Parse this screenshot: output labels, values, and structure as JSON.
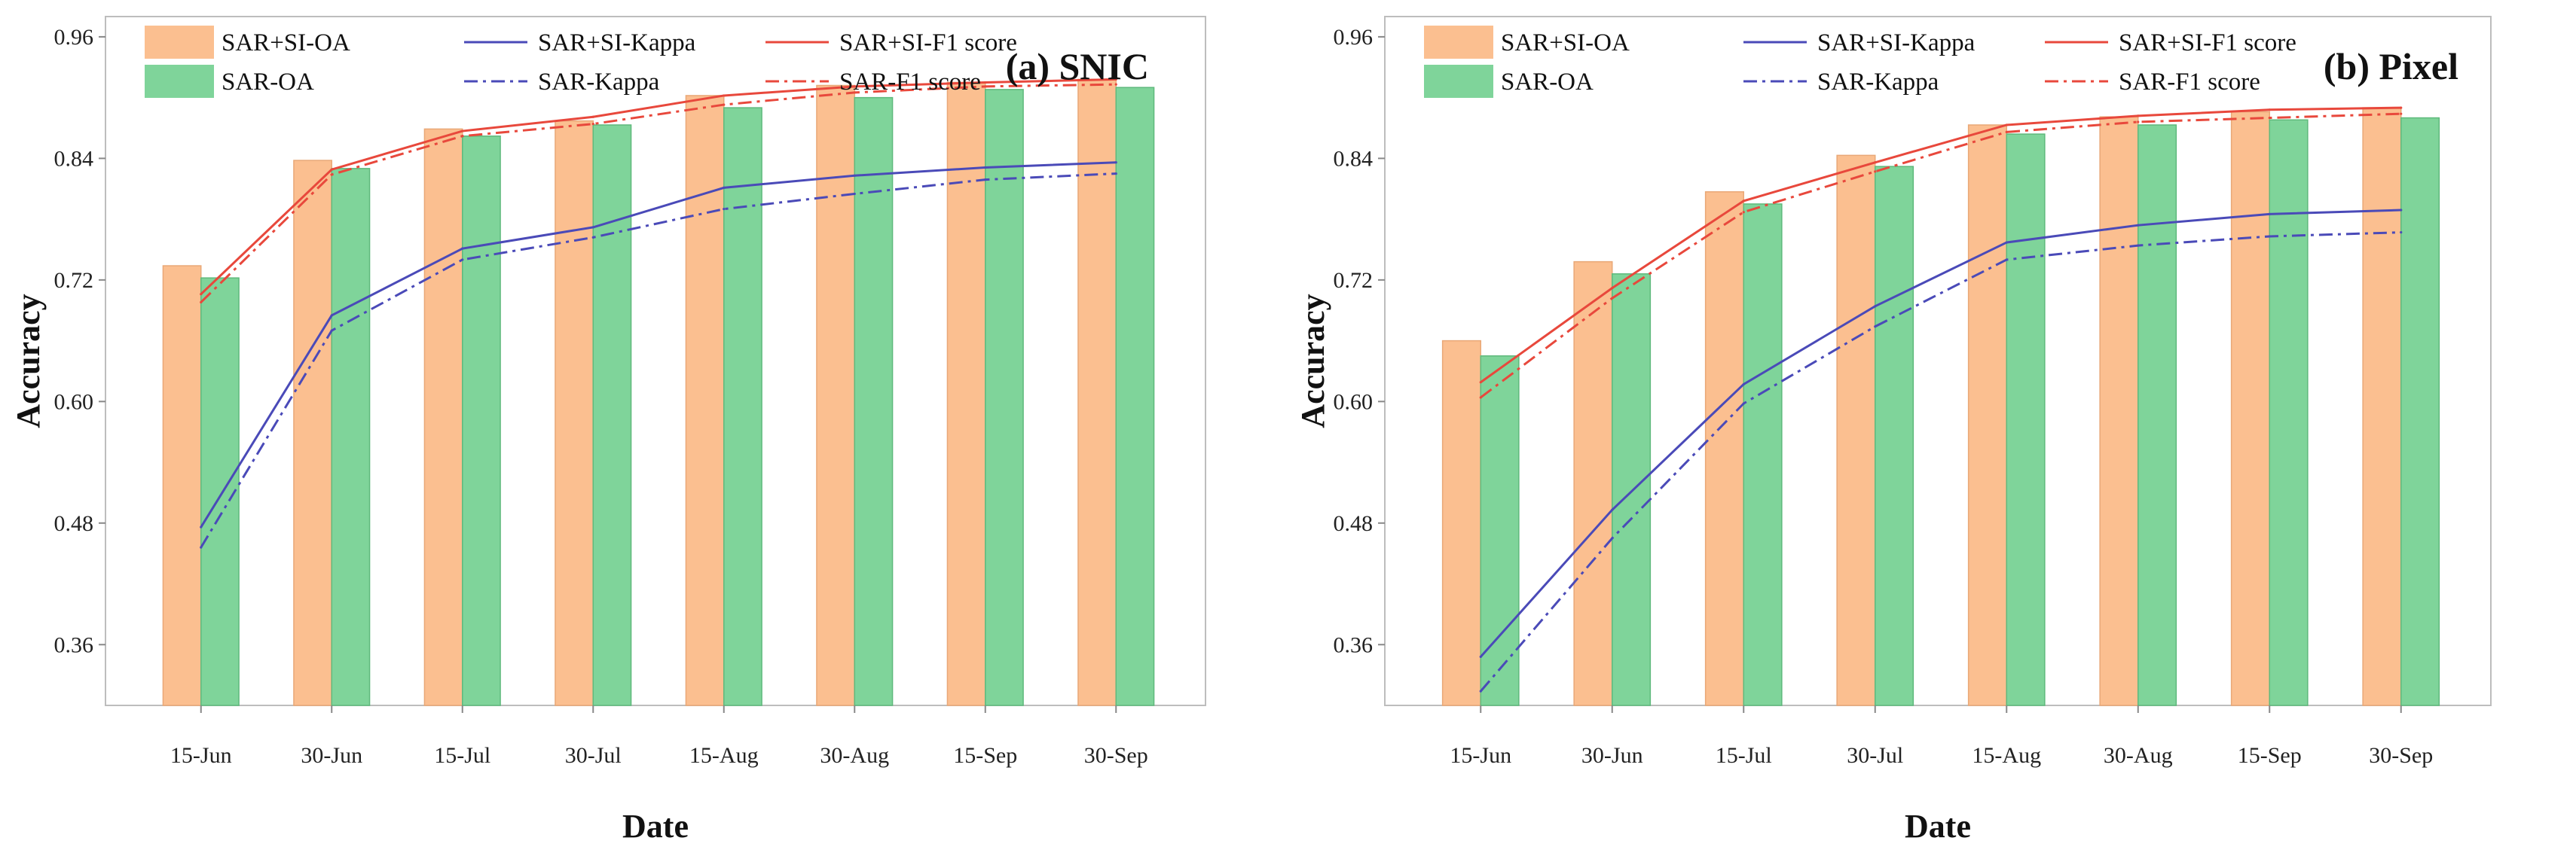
{
  "colors": {
    "sar_si_oa": "#fbbf90",
    "sar_oa": "#7fd49a",
    "sar_si_kappa": "#4a4ab8",
    "sar_kappa": "#4a4ab8",
    "sar_si_f1": "#e8483c",
    "sar_f1": "#e8483c"
  },
  "chart_data": [
    {
      "type": "bar",
      "title": "(a) SNIC",
      "xlabel": "Date",
      "ylabel": "Accuracy",
      "ylim": [
        0.3,
        0.98
      ],
      "yticks": [
        "0.36",
        "0.48",
        "0.60",
        "0.72",
        "0.84",
        "0.96"
      ],
      "categories": [
        "15-Jun",
        "30-Jun",
        "15-Jul",
        "30-Jul",
        "15-Aug",
        "30-Aug",
        "15-Sep",
        "30-Sep"
      ],
      "legend": [
        "SAR+SI-OA",
        "SAR+SI-Kappa",
        "SAR+SI-F1 score",
        "SAR-OA",
        "SAR-Kappa",
        "SAR-F1 score"
      ],
      "series": [
        {
          "name": "SAR+SI-OA",
          "kind": "bar",
          "values": [
            0.734,
            0.838,
            0.869,
            0.877,
            0.902,
            0.912,
            0.915,
            0.918
          ]
        },
        {
          "name": "SAR-OA",
          "kind": "bar",
          "values": [
            0.722,
            0.83,
            0.862,
            0.873,
            0.89,
            0.9,
            0.908,
            0.91
          ]
        },
        {
          "name": "SAR+SI-Kappa",
          "kind": "line",
          "values": [
            0.476,
            0.685,
            0.751,
            0.772,
            0.811,
            0.823,
            0.831,
            0.836
          ]
        },
        {
          "name": "SAR-Kappa",
          "kind": "line-dashdot",
          "values": [
            0.456,
            0.67,
            0.74,
            0.762,
            0.79,
            0.805,
            0.819,
            0.825
          ]
        },
        {
          "name": "SAR+SI-F1 score",
          "kind": "line",
          "values": [
            0.706,
            0.829,
            0.867,
            0.881,
            0.902,
            0.911,
            0.915,
            0.918
          ]
        },
        {
          "name": "SAR-F1 score",
          "kind": "line-dashdot",
          "values": [
            0.698,
            0.824,
            0.862,
            0.874,
            0.893,
            0.905,
            0.911,
            0.913
          ]
        }
      ]
    },
    {
      "type": "bar",
      "title": "(b) Pixel",
      "xlabel": "Date",
      "ylabel": "Accuracy",
      "ylim": [
        0.3,
        0.98
      ],
      "yticks": [
        "0.36",
        "0.48",
        "0.60",
        "0.72",
        "0.84",
        "0.96"
      ],
      "categories": [
        "15-Jun",
        "30-Jun",
        "15-Jul",
        "30-Jul",
        "15-Aug",
        "30-Aug",
        "15-Sep",
        "30-Sep"
      ],
      "legend": [
        "SAR+SI-OA",
        "SAR+SI-Kappa",
        "SAR+SI-F1 score",
        "SAR-OA",
        "SAR-Kappa",
        "SAR-F1 score"
      ],
      "series": [
        {
          "name": "SAR+SI-OA",
          "kind": "bar",
          "values": [
            0.66,
            0.738,
            0.807,
            0.843,
            0.873,
            0.881,
            0.886,
            0.89
          ]
        },
        {
          "name": "SAR-OA",
          "kind": "bar",
          "values": [
            0.645,
            0.726,
            0.795,
            0.832,
            0.864,
            0.873,
            0.878,
            0.88
          ]
        },
        {
          "name": "SAR+SI-Kappa",
          "kind": "line",
          "values": [
            0.348,
            0.493,
            0.617,
            0.694,
            0.757,
            0.774,
            0.785,
            0.789
          ]
        },
        {
          "name": "SAR-Kappa",
          "kind": "line-dashdot",
          "values": [
            0.314,
            0.465,
            0.598,
            0.674,
            0.74,
            0.754,
            0.763,
            0.767
          ]
        },
        {
          "name": "SAR+SI-F1 score",
          "kind": "line",
          "values": [
            0.619,
            0.712,
            0.798,
            0.836,
            0.873,
            0.882,
            0.888,
            0.89
          ]
        },
        {
          "name": "SAR-F1 score",
          "kind": "line-dashdot",
          "values": [
            0.604,
            0.702,
            0.787,
            0.827,
            0.866,
            0.876,
            0.88,
            0.884
          ]
        }
      ]
    }
  ]
}
